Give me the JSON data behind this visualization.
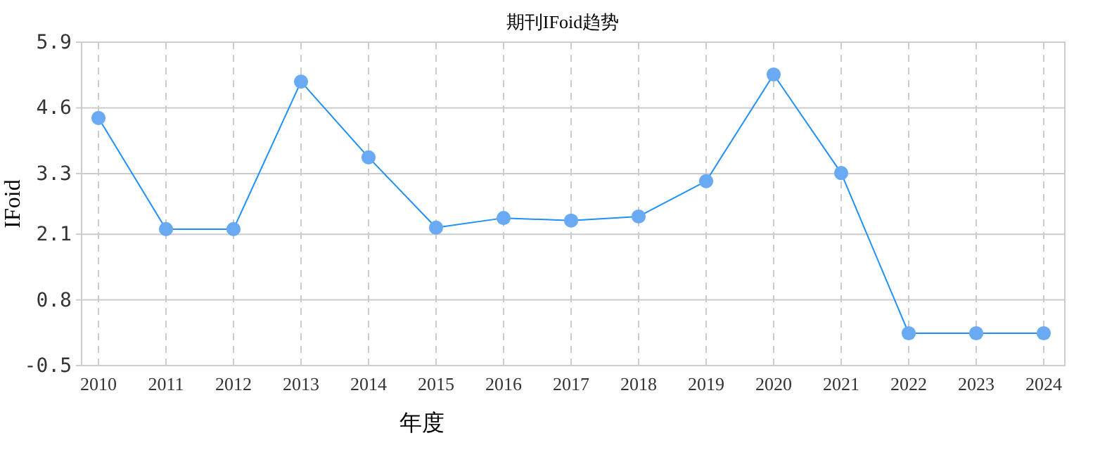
{
  "chart_data": {
    "type": "line",
    "title": "期刊IFoid趋势",
    "xlabel": "年度",
    "ylabel": "IFoid",
    "categories": [
      "2010",
      "2011",
      "2012",
      "2013",
      "2014",
      "2015",
      "2016",
      "2017",
      "2018",
      "2019",
      "2020",
      "2021",
      "2022",
      "2023",
      "2024"
    ],
    "series": [
      {
        "color": "#1e90ff",
        "values": [
          4.4,
          2.2,
          2.2,
          5.12,
          3.62,
          2.23,
          2.42,
          2.37,
          2.45,
          3.15,
          5.26,
          3.31,
          0.14,
          0.14,
          0.14
        ]
      }
    ],
    "ylim": [
      -0.5,
      5.9
    ],
    "yticks": [
      -0.5,
      0.8,
      2.1,
      3.3,
      4.6,
      5.9
    ],
    "grid": true,
    "marker": "circle",
    "line_style": "solid"
  }
}
